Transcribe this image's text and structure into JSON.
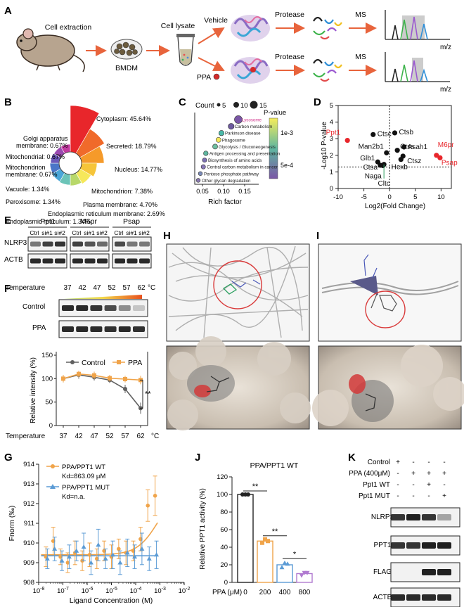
{
  "panels": {
    "A": "A",
    "B": "B",
    "C": "C",
    "D": "D",
    "E": "E",
    "F": "F",
    "G": "G",
    "H": "H",
    "I": "I",
    "J": "J",
    "K": "K"
  },
  "colors": {
    "orange": "#f0a44a",
    "blue": "#5b9bd5",
    "red": "#e8262b",
    "gray": "#606060",
    "arrow": "#e8643c"
  },
  "workflow": {
    "cell_extraction": "Cell extraction",
    "bmdm": "BMDM",
    "cell_lysate": "Cell lysate",
    "vehicle": "Vehicle",
    "ppa": "PPA",
    "protease": "Protease",
    "ms": "MS",
    "mz": "m/z"
  },
  "pie": {
    "labels": [
      "Cytoplasm: 45.64%",
      "Secreted: 18.79%",
      "Nucleus: 14.77%",
      "Mitochondrion: 7.38%",
      "Plasma membrane: 4.70%",
      "Endoplasmic reticulum membrane: 2.69%",
      "Endoplasmic reticulum: 1.34%",
      "Peroxisome: 1.34%",
      "Vacuole: 1.34%",
      "Mitochondrion",
      "membrane: 0.67%",
      "Mitochondrial: 0.67%",
      "Golgi apparatus",
      "membrane: 0.67%"
    ]
  },
  "bubble": {
    "count_label": "Count",
    "sizes": [
      "5",
      "10",
      "15"
    ],
    "pvalue_label": "P-value",
    "color_ticks": [
      "1e-3",
      "5e-4"
    ],
    "xlabel": "Rich factor",
    "xticks": [
      "0.05",
      "0.10",
      "0.15"
    ],
    "terms": [
      "Lysosome",
      "Carbon metabolism",
      "Parkinson disease",
      "Phagosome",
      "Glycolysis / Gluconeogenesis",
      "Antigen processing and presentation",
      "Biosynthesis of amino acids",
      "Central carbon metabolism in cancer",
      "Pentose phosphate pathway",
      "Other glycan degradation"
    ]
  },
  "volcano": {
    "xlabel": "Log2(Fold Change)",
    "ylabel": "-Log10 P-value",
    "xticks": [
      "-10",
      "-5",
      "0",
      "5",
      "10"
    ],
    "yticks": [
      "0",
      "1",
      "2",
      "3",
      "4",
      "5"
    ],
    "points": [
      {
        "label": "Ppt1",
        "x": -8.2,
        "y": 2.9,
        "red": true
      },
      {
        "label": "Ctsc",
        "x": -3.2,
        "y": 3.25,
        "red": false
      },
      {
        "label": "Ctsb",
        "x": 1.0,
        "y": 3.35,
        "red": false
      },
      {
        "label": "Ctss",
        "x": 1.5,
        "y": 2.3,
        "red": false
      },
      {
        "label": "Asah1",
        "x": 2.8,
        "y": 2.5,
        "red": false
      },
      {
        "label": "Man2b1",
        "x": -0.6,
        "y": 2.15,
        "red": false
      },
      {
        "label": "Glb1",
        "x": -2.3,
        "y": 1.6,
        "red": false
      },
      {
        "label": "Ctsa",
        "x": -1.8,
        "y": 1.4,
        "red": false
      },
      {
        "label": "Naga",
        "x": -1.3,
        "y": 1.38,
        "red": false
      },
      {
        "label": "Hexb",
        "x": 2.2,
        "y": 1.75,
        "red": false
      },
      {
        "label": "Ctsz",
        "x": 2.6,
        "y": 1.95,
        "red": false
      },
      {
        "label": "Cltc",
        "x": -1.1,
        "y": 1.45,
        "red": false
      },
      {
        "label": "M6pr",
        "x": 9.1,
        "y": 2.0,
        "red": true
      },
      {
        "label": "Psap",
        "x": 9.8,
        "y": 1.85,
        "red": true
      }
    ]
  },
  "blotE": {
    "groups": [
      "Ppt1",
      "M6pr",
      "Psap"
    ],
    "lanes": [
      "Ctrl",
      "si#1",
      "si#2"
    ],
    "rows": [
      "NLRP3",
      "ACTB"
    ]
  },
  "blotF": {
    "temp_label": "Temperature",
    "temps": [
      "37",
      "42",
      "47",
      "52",
      "57",
      "62"
    ],
    "unit": "°C",
    "rows": [
      "Control",
      "PPA"
    ]
  },
  "chart_data": [
    {
      "type": "line",
      "ylabel": "Relative intensity (%)",
      "xlabel": "Temperature",
      "categories": [
        "37",
        "42",
        "47",
        "52",
        "57",
        "62"
      ],
      "ylim": [
        0,
        150
      ],
      "series": [
        {
          "name": "Control",
          "values": [
            100,
            108,
            103,
            97,
            78,
            37
          ],
          "err": [
            8,
            8,
            7,
            6,
            9,
            12
          ]
        },
        {
          "name": "PPA",
          "values": [
            100,
            110,
            107,
            101,
            99,
            97
          ],
          "err": [
            8,
            7,
            8,
            7,
            7,
            9
          ]
        }
      ],
      "sig": "**"
    },
    {
      "type": "scatter",
      "xlabel": "Ligand Concentration (M)",
      "ylabel": "Fnorm (‰)",
      "ylim": [
        908,
        914
      ],
      "yticks": [
        "908",
        "909",
        "910",
        "911",
        "912",
        "913",
        "914"
      ],
      "xticks": [
        "10-8",
        "10-7",
        "10-6",
        "10-5",
        "10-4",
        "10-3",
        "10-2"
      ],
      "series": [
        {
          "name": "PPA/PPT1 WT",
          "kd": "Kd=863.09 μM",
          "x": [
            -7.7,
            -7.4,
            -7.1,
            -6.8,
            -6.5,
            -6.2,
            -5.9,
            -5.6,
            -5.3,
            -5.0,
            -4.7,
            -4.4,
            -4.1,
            -3.8,
            -3.5,
            -3.2
          ],
          "y": [
            909.3,
            910.1,
            909.3,
            909.0,
            909.5,
            909.1,
            909.4,
            909.2,
            909.6,
            909.3,
            909.7,
            909.5,
            909.6,
            910.2,
            911.9,
            912.4
          ],
          "err": [
            0.5,
            0.7,
            0.4,
            0.5,
            0.6,
            0.5,
            0.6,
            0.5,
            0.5,
            0.6,
            0.5,
            0.6,
            0.5,
            0.6,
            0.8,
            1.0
          ]
        },
        {
          "name": "PPA/PPT1 MUT",
          "kd": "Kd=n.a.",
          "x": [
            -7.7,
            -7.4,
            -7.1,
            -6.8,
            -6.5,
            -6.2,
            -5.9,
            -5.6,
            -5.3,
            -5.0,
            -4.7,
            -4.4,
            -4.1,
            -3.8,
            -3.5,
            -3.2
          ],
          "y": [
            909.2,
            909.7,
            909.1,
            909.3,
            909.6,
            909.8,
            909.0,
            909.9,
            909.2,
            909.4,
            909.0,
            909.5,
            909.3,
            909.7,
            909.2,
            909.4
          ],
          "err": [
            0.5,
            0.6,
            0.5,
            0.6,
            0.5,
            0.7,
            0.6,
            0.8,
            0.5,
            0.7,
            0.6,
            0.7,
            0.6,
            0.8,
            0.6,
            0.7
          ]
        }
      ]
    },
    {
      "type": "bar",
      "title": "PPA/PPT1 WT",
      "xlabel": "PPA (μM)",
      "ylabel": "Relative PPT1 activity (%)",
      "categories": [
        "0",
        "200",
        "400",
        "800"
      ],
      "values": [
        100,
        47,
        20,
        10
      ],
      "ylim": [
        0,
        120
      ],
      "yticks": [
        "0",
        "20",
        "40",
        "60",
        "80",
        "100",
        "120"
      ],
      "sig": [
        "**",
        "**",
        "*"
      ]
    }
  ],
  "blotK": {
    "conditions": [
      "Control",
      "PPA (400μM)",
      "Ppt1 WT",
      "Ppt1 MUT"
    ],
    "signs": [
      [
        "+",
        "-",
        "-",
        "-"
      ],
      [
        "-",
        "+",
        "+",
        "+"
      ],
      [
        "-",
        "-",
        "+",
        "-"
      ],
      [
        "-",
        "-",
        "-",
        "+"
      ]
    ],
    "rows": [
      "NLRP3",
      "PPT1",
      "FLAG",
      "ACTB"
    ]
  }
}
